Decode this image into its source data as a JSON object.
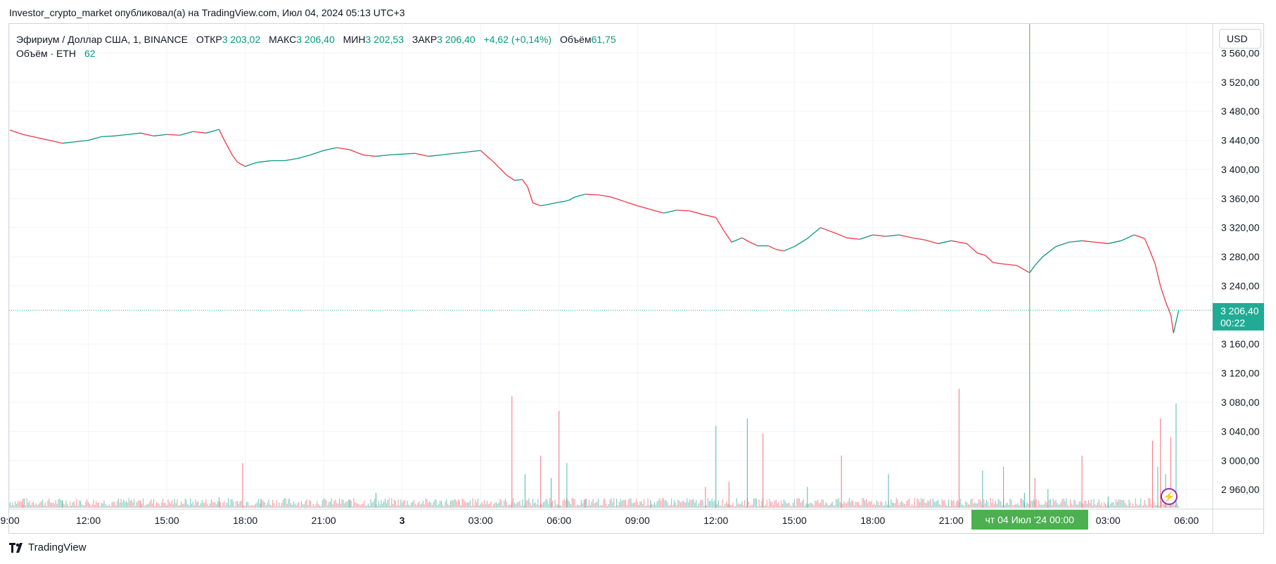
{
  "caption": "Investor_crypto_market опубликовал(а) на TradingView.com, Июл 04, 2024 05:13 UTC+3",
  "legend": {
    "symbol": "Эфириум / Доллар США, 1, BINANCE",
    "open_label": "ОТКР",
    "open": "3 203,02",
    "high_label": "МАКС",
    "high": "3 206,40",
    "low_label": "МИН",
    "low": "3 202,53",
    "close_label": "ЗАКР",
    "close": "3 206,40",
    "change": "+4,62 (+0,14%)",
    "volume_label": "Объём",
    "volume": "61,75",
    "volume_indicator": "Объём · ETH",
    "volume_indicator_value": "62"
  },
  "currency": "USD",
  "price_tag": {
    "price": "3 206,40",
    "countdown": "00:22"
  },
  "crosshair_date": "чт 04 Июл '24   00:00",
  "brand": "TradingView",
  "colors": {
    "up": "#089981",
    "down": "#f23645",
    "crosshair": "#4caf50",
    "price_tag": "#22ab94",
    "grid": "#f0f3fa"
  },
  "chart_data": {
    "type": "line",
    "title": "",
    "grid": true,
    "y_axis_position": "right",
    "ylim": [
      2935,
      3600
    ],
    "yticks": [
      {
        "v": 3560,
        "label": "3 560,00"
      },
      {
        "v": 3520,
        "label": "3 520,00"
      },
      {
        "v": 3480,
        "label": "3 480,00"
      },
      {
        "v": 3440,
        "label": "3 440,00"
      },
      {
        "v": 3400,
        "label": "3 400,00"
      },
      {
        "v": 3360,
        "label": "3 360,00"
      },
      {
        "v": 3320,
        "label": "3 320,00"
      },
      {
        "v": 3280,
        "label": "3 280,00"
      },
      {
        "v": 3240,
        "label": "3 240,00"
      },
      {
        "v": 3160,
        "label": "3 160,00"
      },
      {
        "v": 3120,
        "label": "3 120,00"
      },
      {
        "v": 3080,
        "label": "3 080,00"
      },
      {
        "v": 3040,
        "label": "3 040,00"
      },
      {
        "v": 3000,
        "label": "3 000,00"
      },
      {
        "v": 2960,
        "label": "2 960,00"
      }
    ],
    "x_range_hours": [
      8.97,
      30.45
    ],
    "xticks": [
      {
        "h": 9,
        "label": "9:00"
      },
      {
        "h": 12,
        "label": "12:00"
      },
      {
        "h": 15,
        "label": "15:00"
      },
      {
        "h": 18,
        "label": "18:00"
      },
      {
        "h": 21,
        "label": "21:00"
      },
      {
        "h": 24,
        "label": "3"
      },
      {
        "h": 27,
        "label": "03:00"
      },
      {
        "h": 30,
        "label": "06:00"
      },
      {
        "h": 33,
        "label": "09:00"
      },
      {
        "h": 36,
        "label": "12:00"
      },
      {
        "h": 39,
        "label": "15:00"
      },
      {
        "h": 42,
        "label": "18:00"
      },
      {
        "h": 45,
        "label": "21:00"
      },
      {
        "h": 51,
        "label": "03:00"
      },
      {
        "h": 54,
        "label": "06:00"
      }
    ],
    "crosshair_hour": 48,
    "last_price": 3206.4,
    "series": [
      {
        "x": [
          9.0,
          9.5,
          10.0,
          10.5,
          11.0,
          11.5,
          12.0,
          12.5,
          13.0,
          13.5,
          14.0,
          14.5,
          15.0,
          15.5,
          16.0,
          16.5,
          17.0,
          17.2,
          17.5,
          17.7,
          18.0,
          18.3,
          18.5,
          19.0,
          19.5,
          20.0,
          20.5,
          21.0,
          21.5,
          22.0,
          22.5,
          23.0,
          23.5,
          24.0,
          24.5,
          25.0,
          25.5,
          26.0,
          26.5,
          27.0,
          27.5,
          28.0,
          28.3,
          28.6,
          28.8,
          29.0,
          29.3,
          29.6,
          30.0,
          30.2,
          30.4,
          30.6,
          31.0,
          31.5,
          32.0,
          32.5,
          33.0,
          33.5,
          34.0,
          34.5,
          35.0,
          35.5,
          36.0,
          36.3,
          36.6,
          37.0,
          37.3,
          37.6,
          38.0,
          38.3,
          38.6,
          39.0,
          39.5,
          39.8,
          40.0,
          40.3,
          40.6,
          41.0,
          41.5,
          42.0,
          42.5,
          43.0,
          43.5,
          44.0,
          44.5,
          45.0,
          45.3,
          45.6,
          46.0,
          46.3,
          46.6,
          47.0,
          47.5,
          47.8,
          48.0,
          48.2,
          48.5,
          49.0,
          49.5,
          50.0,
          50.5,
          51.0,
          51.5,
          52.0,
          52.4,
          52.6,
          52.8,
          53.0,
          53.2,
          53.4,
          53.5,
          53.7
        ],
        "close": [
          3454,
          3448,
          3444,
          3440,
          3436,
          3438,
          3440,
          3445,
          3446,
          3448,
          3450,
          3446,
          3448,
          3447,
          3452,
          3450,
          3455,
          3440,
          3420,
          3410,
          3404,
          3408,
          3410,
          3412,
          3412,
          3415,
          3420,
          3426,
          3430,
          3427,
          3420,
          3418,
          3420,
          3421,
          3422,
          3418,
          3420,
          3422,
          3424,
          3426,
          3410,
          3392,
          3385,
          3386,
          3376,
          3354,
          3350,
          3352,
          3355,
          3356,
          3358,
          3362,
          3366,
          3365,
          3362,
          3356,
          3350,
          3345,
          3340,
          3344,
          3343,
          3338,
          3334,
          3316,
          3300,
          3306,
          3300,
          3295,
          3295,
          3290,
          3288,
          3294,
          3305,
          3314,
          3320,
          3316,
          3312,
          3306,
          3304,
          3310,
          3308,
          3310,
          3306,
          3303,
          3298,
          3302,
          3300,
          3298,
          3285,
          3282,
          3272,
          3270,
          3268,
          3262,
          3258,
          3268,
          3280,
          3294,
          3300,
          3302,
          3300,
          3298,
          3302,
          3310,
          3305,
          3288,
          3270,
          3240,
          3218,
          3200,
          3175,
          3206.4
        ]
      }
    ],
    "volume": {
      "x": [
        9.5,
        11.0,
        14.0,
        17.0,
        17.9,
        18.6,
        22.0,
        23.0,
        28.2,
        28.7,
        29.3,
        29.7,
        30.0,
        30.3,
        31.0,
        33.5,
        35.6,
        36.0,
        36.5,
        37.2,
        37.8,
        39.5,
        40.8,
        42.6,
        45.3,
        46.2,
        47.0,
        47.8,
        48.2,
        48.7,
        50.0,
        51.0,
        52.7,
        52.9,
        53.0,
        53.2,
        53.4,
        53.6
      ],
      "values": [
        12,
        10,
        10,
        14,
        60,
        12,
        10,
        20,
        150,
        45,
        70,
        40,
        130,
        60,
        12,
        10,
        28,
        110,
        35,
        120,
        100,
        28,
        70,
        45,
        160,
        50,
        55,
        20,
        40,
        25,
        70,
        15,
        90,
        55,
        120,
        45,
        95,
        140
      ]
    },
    "volume_max": 170
  }
}
